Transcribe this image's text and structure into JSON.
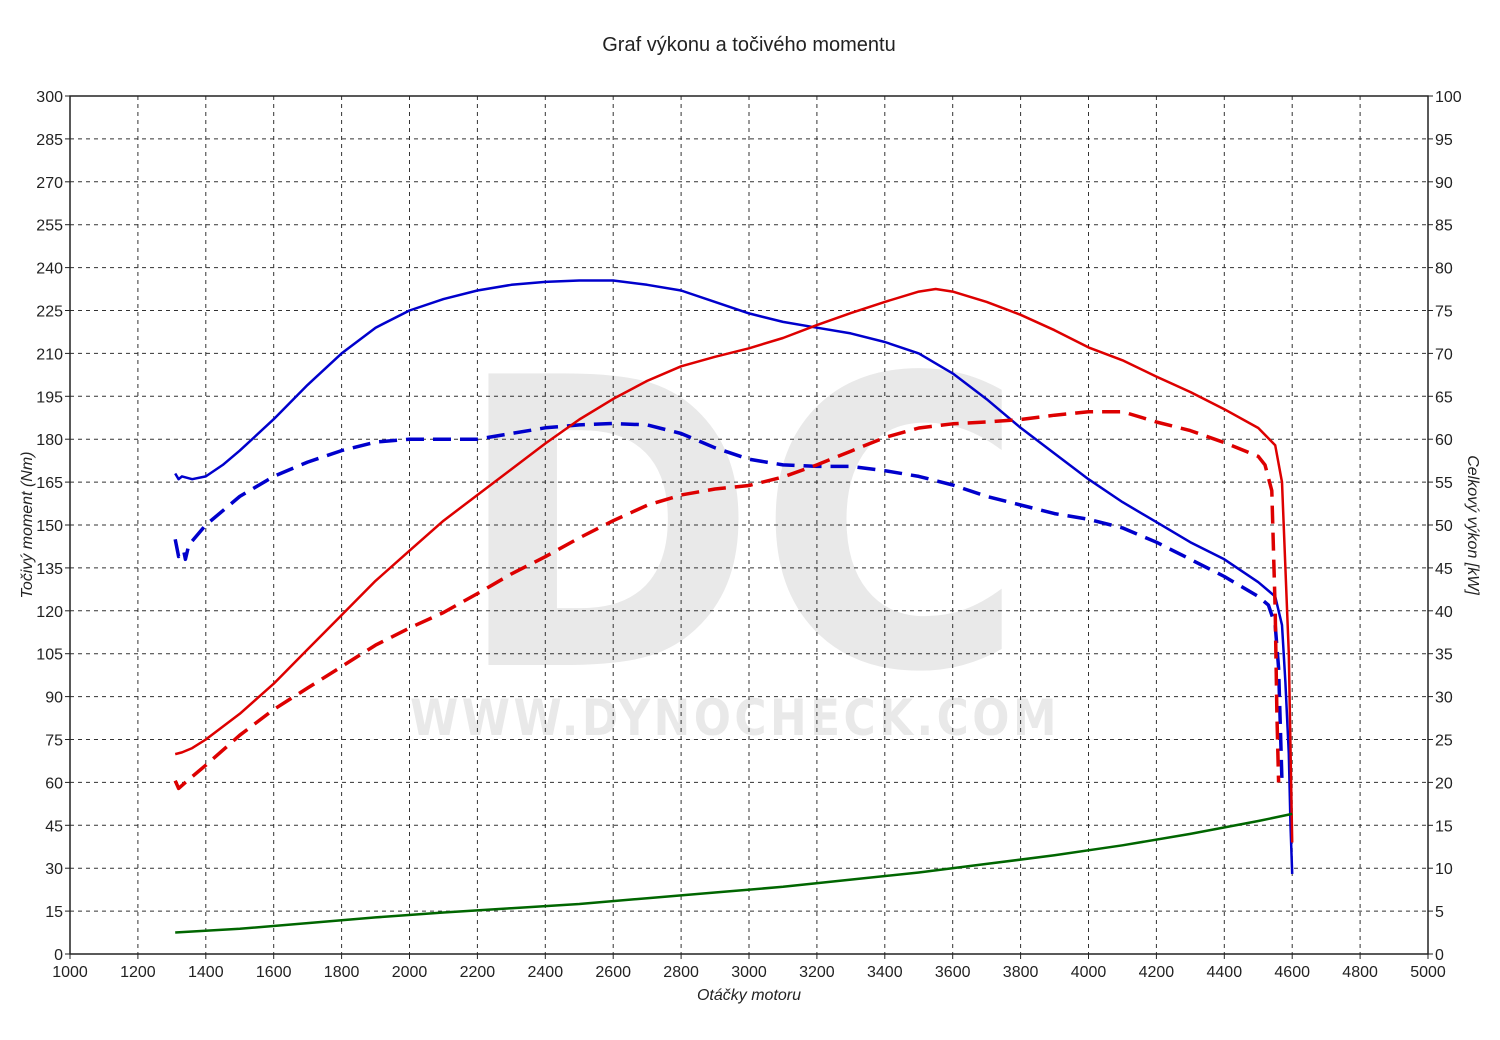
{
  "chart_data": {
    "type": "line",
    "title": "Graf výkonu a točivého momentu",
    "xlabel": "Otáčky motoru",
    "ylabel_left": "Točivý moment (Nm)",
    "ylabel_right": "Celkový výkon [kW]",
    "watermark": {
      "logo": "DC",
      "url": "WWW.DYNOCHECK.COM"
    },
    "xlim": [
      1000,
      5000
    ],
    "ylim_left": [
      0,
      300
    ],
    "ylim_right": [
      0,
      100
    ],
    "x_ticks": [
      1000,
      1200,
      1400,
      1600,
      1800,
      2000,
      2200,
      2400,
      2600,
      2800,
      3000,
      3200,
      3400,
      3600,
      3800,
      4000,
      4200,
      4400,
      4600,
      4800,
      5000
    ],
    "y_ticks_left": [
      0,
      15,
      30,
      45,
      60,
      75,
      90,
      105,
      120,
      135,
      150,
      165,
      180,
      195,
      210,
      225,
      240,
      255,
      270,
      285,
      300
    ],
    "y_ticks_right": [
      0,
      5,
      10,
      15,
      20,
      25,
      30,
      35,
      40,
      45,
      50,
      55,
      60,
      65,
      70,
      75,
      80,
      85,
      90,
      95,
      100
    ],
    "grid": true,
    "colors": {
      "torque": "#0000cc",
      "power": "#dd0000",
      "loss": "#006600",
      "grid": "#333333"
    },
    "series": [
      {
        "axis": "left",
        "color": "#0000cc",
        "style": "solid",
        "points": [
          [
            1310,
            168
          ],
          [
            1320,
            166
          ],
          [
            1330,
            167
          ],
          [
            1360,
            166
          ],
          [
            1400,
            167
          ],
          [
            1450,
            171
          ],
          [
            1500,
            176
          ],
          [
            1600,
            187
          ],
          [
            1700,
            199
          ],
          [
            1800,
            210
          ],
          [
            1900,
            219
          ],
          [
            2000,
            225
          ],
          [
            2100,
            229
          ],
          [
            2200,
            232
          ],
          [
            2300,
            234
          ],
          [
            2400,
            235
          ],
          [
            2500,
            235.5
          ],
          [
            2600,
            235.5
          ],
          [
            2700,
            234
          ],
          [
            2800,
            232
          ],
          [
            2900,
            228
          ],
          [
            3000,
            224
          ],
          [
            3100,
            221
          ],
          [
            3200,
            219
          ],
          [
            3300,
            217
          ],
          [
            3400,
            214
          ],
          [
            3500,
            210
          ],
          [
            3600,
            203
          ],
          [
            3700,
            194
          ],
          [
            3800,
            184
          ],
          [
            3900,
            175
          ],
          [
            4000,
            166
          ],
          [
            4100,
            158
          ],
          [
            4200,
            151
          ],
          [
            4300,
            144
          ],
          [
            4400,
            138
          ],
          [
            4500,
            130
          ],
          [
            4550,
            125
          ],
          [
            4570,
            115
          ],
          [
            4580,
            95
          ],
          [
            4590,
            70
          ],
          [
            4595,
            45
          ],
          [
            4600,
            28
          ]
        ]
      },
      {
        "axis": "left",
        "color": "#0000cc",
        "style": "dashed",
        "points": [
          [
            1310,
            145
          ],
          [
            1320,
            139
          ],
          [
            1335,
            141
          ],
          [
            1340,
            138
          ],
          [
            1350,
            143
          ],
          [
            1400,
            150
          ],
          [
            1500,
            160
          ],
          [
            1600,
            167
          ],
          [
            1700,
            172
          ],
          [
            1800,
            176
          ],
          [
            1900,
            179
          ],
          [
            2000,
            180
          ],
          [
            2100,
            180
          ],
          [
            2200,
            180
          ],
          [
            2300,
            182
          ],
          [
            2400,
            184
          ],
          [
            2500,
            185
          ],
          [
            2600,
            185.5
          ],
          [
            2700,
            185
          ],
          [
            2800,
            182
          ],
          [
            2900,
            177
          ],
          [
            3000,
            173
          ],
          [
            3100,
            171
          ],
          [
            3200,
            170.5
          ],
          [
            3300,
            170.5
          ],
          [
            3400,
            169
          ],
          [
            3500,
            167
          ],
          [
            3600,
            164
          ],
          [
            3700,
            160
          ],
          [
            3800,
            157
          ],
          [
            3900,
            154
          ],
          [
            4000,
            152
          ],
          [
            4100,
            149
          ],
          [
            4200,
            144
          ],
          [
            4300,
            138
          ],
          [
            4400,
            132
          ],
          [
            4500,
            125
          ],
          [
            4530,
            122
          ],
          [
            4550,
            115
          ],
          [
            4560,
            100
          ],
          [
            4565,
            80
          ],
          [
            4570,
            60
          ]
        ]
      },
      {
        "axis": "right",
        "color": "#dd0000",
        "style": "solid",
        "points": [
          [
            1310,
            23.3
          ],
          [
            1330,
            23.5
          ],
          [
            1360,
            24
          ],
          [
            1400,
            25
          ],
          [
            1500,
            28
          ],
          [
            1600,
            31.5
          ],
          [
            1700,
            35.5
          ],
          [
            1800,
            39.5
          ],
          [
            1900,
            43.5
          ],
          [
            2000,
            47
          ],
          [
            2100,
            50.5
          ],
          [
            2200,
            53.5
          ],
          [
            2300,
            56.5
          ],
          [
            2400,
            59.5
          ],
          [
            2500,
            62.3
          ],
          [
            2600,
            64.7
          ],
          [
            2700,
            66.8
          ],
          [
            2800,
            68.5
          ],
          [
            2900,
            69.6
          ],
          [
            3000,
            70.6
          ],
          [
            3100,
            71.8
          ],
          [
            3200,
            73.3
          ],
          [
            3300,
            74.7
          ],
          [
            3400,
            76
          ],
          [
            3500,
            77.2
          ],
          [
            3550,
            77.5
          ],
          [
            3600,
            77.2
          ],
          [
            3700,
            76
          ],
          [
            3800,
            74.5
          ],
          [
            3900,
            72.7
          ],
          [
            4000,
            70.7
          ],
          [
            4100,
            69.2
          ],
          [
            4200,
            67.3
          ],
          [
            4300,
            65.5
          ],
          [
            4400,
            63.5
          ],
          [
            4500,
            61.3
          ],
          [
            4550,
            59.3
          ],
          [
            4570,
            55
          ],
          [
            4580,
            45
          ],
          [
            4590,
            35
          ],
          [
            4600,
            13
          ]
        ]
      },
      {
        "axis": "right",
        "color": "#dd0000",
        "style": "dashed",
        "points": [
          [
            1310,
            20.2
          ],
          [
            1320,
            19.3
          ],
          [
            1340,
            20
          ],
          [
            1400,
            22
          ],
          [
            1500,
            25.5
          ],
          [
            1600,
            28.5
          ],
          [
            1700,
            31
          ],
          [
            1800,
            33.5
          ],
          [
            1900,
            36
          ],
          [
            2000,
            38
          ],
          [
            2100,
            39.8
          ],
          [
            2200,
            42
          ],
          [
            2300,
            44.3
          ],
          [
            2400,
            46.3
          ],
          [
            2500,
            48.5
          ],
          [
            2600,
            50.5
          ],
          [
            2700,
            52.3
          ],
          [
            2800,
            53.5
          ],
          [
            2900,
            54.2
          ],
          [
            3000,
            54.6
          ],
          [
            3100,
            55.6
          ],
          [
            3200,
            57
          ],
          [
            3300,
            58.6
          ],
          [
            3400,
            60.2
          ],
          [
            3500,
            61.3
          ],
          [
            3600,
            61.8
          ],
          [
            3700,
            62
          ],
          [
            3800,
            62.3
          ],
          [
            3900,
            62.8
          ],
          [
            4000,
            63.2
          ],
          [
            4100,
            63.2
          ],
          [
            4200,
            62
          ],
          [
            4300,
            61
          ],
          [
            4400,
            59.6
          ],
          [
            4500,
            58
          ],
          [
            4520,
            57
          ],
          [
            4540,
            54
          ],
          [
            4550,
            40
          ],
          [
            4555,
            28
          ],
          [
            4560,
            20
          ]
        ]
      },
      {
        "axis": "left",
        "color": "#006600",
        "style": "solid",
        "points": [
          [
            1310,
            7.5
          ],
          [
            1500,
            8.8
          ],
          [
            1700,
            10.8
          ],
          [
            1900,
            12.8
          ],
          [
            2100,
            14.5
          ],
          [
            2300,
            16
          ],
          [
            2500,
            17.5
          ],
          [
            2700,
            19.5
          ],
          [
            2900,
            21.5
          ],
          [
            3100,
            23.5
          ],
          [
            3300,
            26
          ],
          [
            3500,
            28.5
          ],
          [
            3700,
            31.5
          ],
          [
            3900,
            34.5
          ],
          [
            4100,
            38
          ],
          [
            4300,
            42
          ],
          [
            4500,
            46.5
          ],
          [
            4600,
            49
          ]
        ]
      }
    ]
  }
}
